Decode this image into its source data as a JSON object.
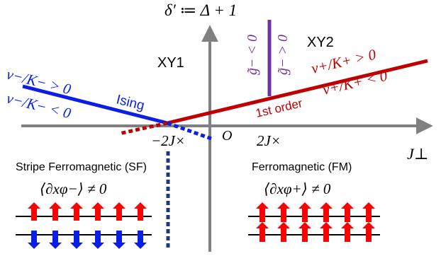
{
  "axes": {
    "y_label": "δ′ ≔ Δ + 1",
    "x_label": "J⊥",
    "origin": "O",
    "tick_left": "−2J×",
    "tick_right": "2J×"
  },
  "regions": {
    "xy1": "XY1",
    "xy2": "XY2",
    "stripe_fm": "Stripe Ferromagnetic (SF)",
    "fm": "Ferromagnetic (FM)",
    "order_sf": "⟨∂xφ−⟩ ≠ 0",
    "order_fm": "⟨∂xφ+⟩ ≠ 0"
  },
  "lines": {
    "ising": "Ising",
    "first_order": "1st order",
    "v_minus_pos": "v−/K− > 0",
    "v_minus_neg": "v−/K− < 0",
    "v_plus_pos": "v+/K+ > 0",
    "v_plus_neg": "v+/K+ < 0",
    "g_minus_neg": "g̃− < 0",
    "g_minus_pos": "g̃− > 0"
  },
  "colors": {
    "axis": "#808080",
    "blue": "#0a1ee6",
    "red": "#c00000",
    "purple": "#7030a0",
    "spin_red": "#ff0000",
    "spin_blue": "#0a1ee6",
    "navy": "#1f3a7a"
  }
}
